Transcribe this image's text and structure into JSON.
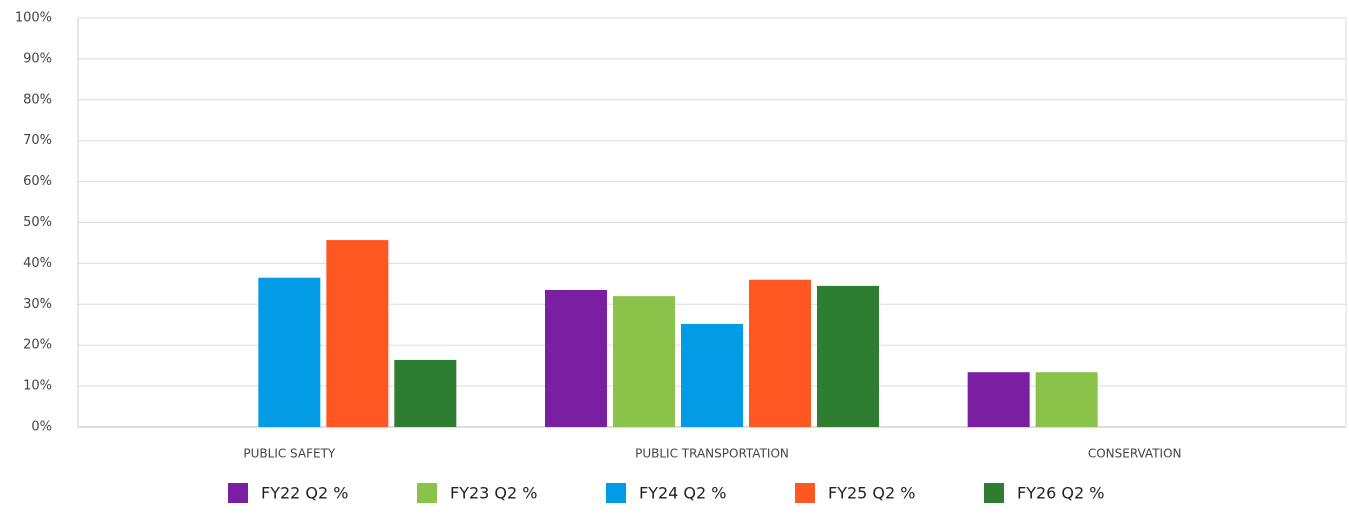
{
  "chart_data": {
    "type": "bar",
    "categories": [
      "PUBLIC SAFETY",
      "PUBLIC TRANSPORTATION",
      "CONSERVATION"
    ],
    "series": [
      {
        "name": "FY22 Q2 %",
        "color": "#7b1fa2",
        "values": [
          null,
          33.5,
          13.4
        ]
      },
      {
        "name": "FY23 Q2 %",
        "color": "#8bc34a",
        "values": [
          null,
          32,
          13.4
        ]
      },
      {
        "name": "FY24 Q2 %",
        "color": "#039be5",
        "values": [
          36.5,
          25.2,
          null
        ]
      },
      {
        "name": "FY25 Q2 %",
        "color": "#ff5722",
        "values": [
          45.7,
          36,
          null
        ]
      },
      {
        "name": "FY26 Q2 %",
        "color": "#2e7d32",
        "values": [
          16.4,
          34.5,
          null
        ]
      }
    ],
    "ylim": [
      0,
      100
    ],
    "yticks": [
      {
        "value": 0,
        "label": "0%"
      },
      {
        "value": 10,
        "label": "10%"
      },
      {
        "value": 20,
        "label": "20%"
      },
      {
        "value": 30,
        "label": "30%"
      },
      {
        "value": 40,
        "label": "40%"
      },
      {
        "value": 50,
        "label": "50%"
      },
      {
        "value": 60,
        "label": "60%"
      },
      {
        "value": 70,
        "label": "70%"
      },
      {
        "value": 80,
        "label": "80%"
      },
      {
        "value": 90,
        "label": "90%"
      },
      {
        "value": 100,
        "label": "100%"
      }
    ],
    "grid": true,
    "legend": "bottom"
  }
}
